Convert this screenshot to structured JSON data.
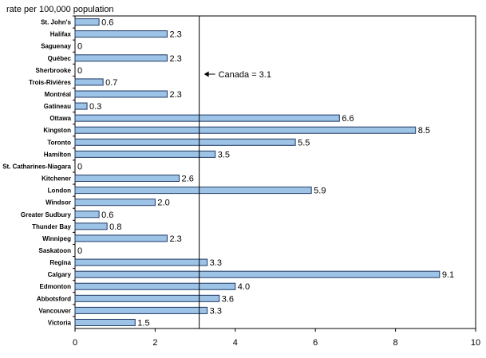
{
  "chart_data": {
    "type": "bar",
    "orientation": "horizontal",
    "ylabel": "rate per 100,000 population",
    "xlabel": "",
    "categories": [
      "St. John's",
      "Halifax",
      "Saguenay",
      "Québec",
      "Sherbrooke",
      "Trois-Rivières",
      "Montréal",
      "Gatineau",
      "Ottawa",
      "Kingston",
      "Toronto",
      "Hamilton",
      "St. Catharines-Niagara",
      "Kitchener",
      "London",
      "Windsor",
      "Greater Sudbury",
      "Thunder Bay",
      "Winnipeg",
      "Saskatoon",
      "Regina",
      "Calgary",
      "Edmonton",
      "Abbotsford",
      "Vancouver",
      "Victoria"
    ],
    "values": [
      0.6,
      2.3,
      0,
      2.3,
      0,
      0.7,
      2.3,
      0.3,
      6.6,
      8.5,
      5.5,
      3.5,
      0,
      2.6,
      5.9,
      2.0,
      0.6,
      0.8,
      2.3,
      0,
      3.3,
      9.1,
      4.0,
      3.6,
      3.3,
      1.5
    ],
    "value_labels": [
      "0.6",
      "2.3",
      "0",
      "2.3",
      "0",
      "0.7",
      "2.3",
      "0.3",
      "6.6",
      "8.5",
      "5.5",
      "3.5",
      "0",
      "2.6",
      "5.9",
      "2.0",
      "0.6",
      "0.8",
      "2.3",
      "0",
      "3.3",
      "9.1",
      "4.0",
      "3.6",
      "3.3",
      "1.5"
    ],
    "xlim": [
      0,
      10
    ],
    "xticks": [
      0,
      2,
      4,
      6,
      8,
      10
    ],
    "xtick_labels": [
      "0",
      "2",
      "4",
      "6",
      "8",
      "10"
    ],
    "reference_line": {
      "value": 3.1,
      "label": "Canada = 3.1"
    },
    "grid": false,
    "legend": "none",
    "colors": {
      "bar_fill": "#9DC3E6",
      "bar_stroke": "#1F3864",
      "axis": "#000000"
    }
  }
}
